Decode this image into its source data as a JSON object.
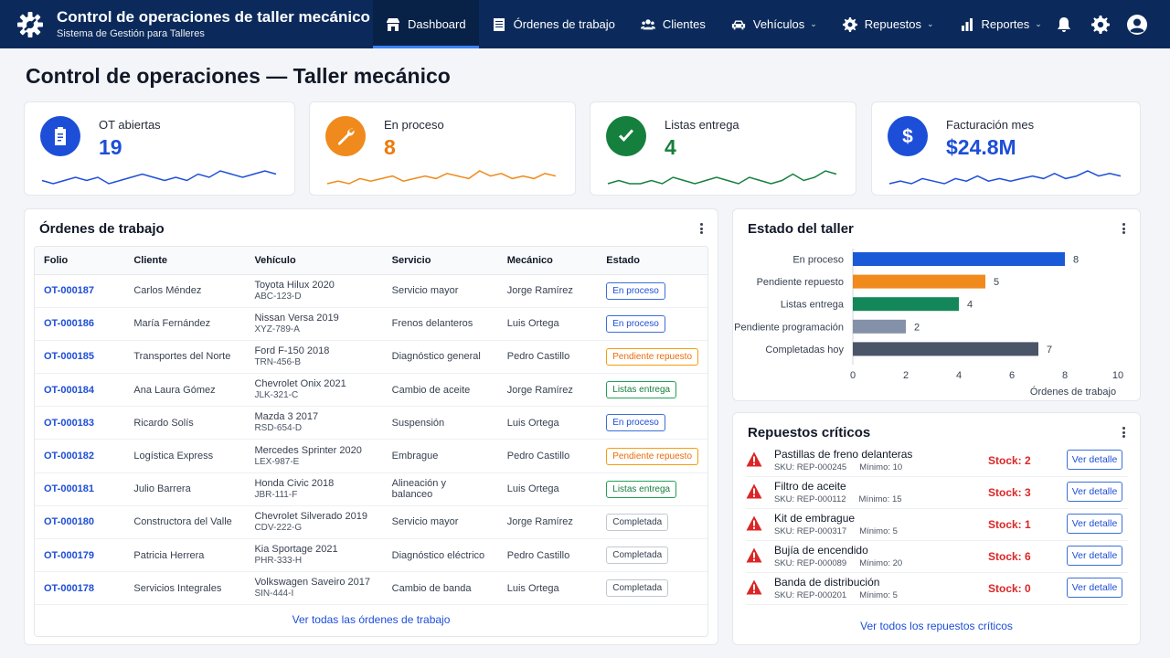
{
  "header": {
    "title": "Control de operaciones de taller mecánico",
    "subtitle": "Sistema de Gestión para Talleres",
    "nav": [
      {
        "label": "Dashboard",
        "icon": "store-icon",
        "active": true,
        "dropdown": false
      },
      {
        "label": "Órdenes de trabajo",
        "icon": "list-icon",
        "active": false,
        "dropdown": false
      },
      {
        "label": "Clientes",
        "icon": "users-icon",
        "active": false,
        "dropdown": false
      },
      {
        "label": "Vehículos",
        "icon": "car-icon",
        "active": false,
        "dropdown": true
      },
      {
        "label": "Repuestos",
        "icon": "gear-icon",
        "active": false,
        "dropdown": true
      },
      {
        "label": "Reportes",
        "icon": "bar-chart-icon",
        "active": false,
        "dropdown": true
      }
    ],
    "right_icons": [
      "bell-icon",
      "settings-icon",
      "user-avatar-icon"
    ]
  },
  "page_title": "Control de operaciones — Taller mecánico",
  "kpis": [
    {
      "label": "OT abiertas",
      "value": "19",
      "icon": "clipboard-icon",
      "color": "#1d4ed8",
      "value_color": "#1d4ed8",
      "trend": [
        6,
        5,
        6,
        7,
        6,
        7,
        5,
        6,
        7,
        8,
        7,
        6,
        7,
        6,
        8,
        7,
        9,
        8,
        7,
        8,
        9,
        8
      ]
    },
    {
      "label": "En proceso",
      "value": "8",
      "icon": "wrench-icon",
      "color": "#f08a1c",
      "value_color": "#ea7b0c",
      "trend": [
        4,
        5,
        4,
        6,
        5,
        6,
        7,
        5,
        6,
        7,
        6,
        8,
        7,
        6,
        9,
        7,
        8,
        6,
        7,
        6,
        8,
        7
      ]
    },
    {
      "label": "Listas entrega",
      "value": "4",
      "icon": "check-icon",
      "color": "#15803d",
      "value_color": "#15803d",
      "trend": [
        3,
        4,
        3,
        3,
        4,
        3,
        5,
        4,
        3,
        4,
        5,
        4,
        3,
        5,
        4,
        3,
        4,
        6,
        4,
        5,
        7,
        6
      ]
    },
    {
      "label": "Facturación mes",
      "value": "$24.8M",
      "icon": "dollar-icon",
      "color": "#1d4ed8",
      "value_color": "#1d4ed8",
      "trend": [
        5,
        6,
        5,
        7,
        6,
        5,
        7,
        6,
        8,
        6,
        7,
        6,
        7,
        8,
        7,
        9,
        7,
        8,
        10,
        8,
        9,
        8
      ]
    }
  ],
  "orders": {
    "title": "Órdenes de trabajo",
    "columns": [
      "Folio",
      "Cliente",
      "Vehículo",
      "Servicio",
      "Mecánico",
      "Estado"
    ],
    "rows": [
      {
        "folio": "OT-000187",
        "cliente": "Carlos Méndez",
        "vehiculo": "Toyota Hilux 2020",
        "placa": "ABC-123-D",
        "servicio": "Servicio mayor",
        "mecanico": "Jorge Ramírez",
        "estado": "En proceso",
        "tipo": "proc"
      },
      {
        "folio": "OT-000186",
        "cliente": "María Fernández",
        "vehiculo": "Nissan Versa 2019",
        "placa": "XYZ-789-A",
        "servicio": "Frenos delanteros",
        "mecanico": "Luis Ortega",
        "estado": "En proceso",
        "tipo": "proc"
      },
      {
        "folio": "OT-000185",
        "cliente": "Transportes del Norte",
        "vehiculo": "Ford F-150 2018",
        "placa": "TRN-456-B",
        "servicio": "Diagnóstico general",
        "mecanico": "Pedro Castillo",
        "estado": "Pendiente repuesto",
        "tipo": "pend"
      },
      {
        "folio": "OT-000184",
        "cliente": "Ana Laura Gómez",
        "vehiculo": "Chevrolet Onix 2021",
        "placa": "JLK-321-C",
        "servicio": "Cambio de aceite",
        "mecanico": "Jorge Ramírez",
        "estado": "Listas entrega",
        "tipo": "list"
      },
      {
        "folio": "OT-000183",
        "cliente": "Ricardo Solís",
        "vehiculo": "Mazda 3 2017",
        "placa": "RSD-654-D",
        "servicio": "Suspensión",
        "mecanico": "Luis Ortega",
        "estado": "En proceso",
        "tipo": "proc"
      },
      {
        "folio": "OT-000182",
        "cliente": "Logística Express",
        "vehiculo": "Mercedes Sprinter 2020",
        "placa": "LEX-987-E",
        "servicio": "Embrague",
        "mecanico": "Pedro Castillo",
        "estado": "Pendiente repuesto",
        "tipo": "pend"
      },
      {
        "folio": "OT-000181",
        "cliente": "Julio Barrera",
        "vehiculo": "Honda Civic 2018",
        "placa": "JBR-111-F",
        "servicio": "Alineación y balanceo",
        "mecanico": "Luis Ortega",
        "estado": "Listas entrega",
        "tipo": "list"
      },
      {
        "folio": "OT-000180",
        "cliente": "Constructora del Valle",
        "vehiculo": "Chevrolet Silverado 2019",
        "placa": "CDV-222-G",
        "servicio": "Servicio mayor",
        "mecanico": "Jorge Ramírez",
        "estado": "Completada",
        "tipo": "comp"
      },
      {
        "folio": "OT-000179",
        "cliente": "Patricia Herrera",
        "vehiculo": "Kia Sportage 2021",
        "placa": "PHR-333-H",
        "servicio": "Diagnóstico eléctrico",
        "mecanico": "Pedro Castillo",
        "estado": "Completada",
        "tipo": "comp"
      },
      {
        "folio": "OT-000178",
        "cliente": "Servicios Integrales",
        "vehiculo": "Volkswagen Saveiro 2017",
        "placa": "SIN-444-I",
        "servicio": "Cambio de banda",
        "mecanico": "Luis Ortega",
        "estado": "Completada",
        "tipo": "comp"
      }
    ],
    "footer_link": "Ver todas las órdenes de trabajo"
  },
  "status_card": {
    "title": "Estado del taller"
  },
  "chart_data": {
    "type": "bar",
    "orientation": "horizontal",
    "categories": [
      "En proceso",
      "Pendiente repuesto",
      "Listas entrega",
      "Pendiente programación",
      "Completadas hoy"
    ],
    "values": [
      8,
      5,
      4,
      2,
      7
    ],
    "colors": [
      "#1a5ad7",
      "#f08a1c",
      "#14875a",
      "#8491a8",
      "#4a5568"
    ],
    "xlabel": "Órdenes de trabajo",
    "ylabel": "",
    "xlim": [
      0,
      10
    ],
    "xticks": [
      0,
      2,
      4,
      6,
      8,
      10
    ],
    "data_labels": true,
    "grid": false
  },
  "parts": {
    "title": "Repuestos críticos",
    "items": [
      {
        "name": "Pastillas de freno delanteras",
        "sku": "SKU: REP-000245",
        "min": "Mínimo: 10",
        "stock": "Stock: 2",
        "button": "Ver detalle"
      },
      {
        "name": "Filtro de aceite",
        "sku": "SKU: REP-000112",
        "min": "Mínimo: 15",
        "stock": "Stock: 3",
        "button": "Ver detalle"
      },
      {
        "name": "Kit de embrague",
        "sku": "SKU: REP-000317",
        "min": "Mínimo: 5",
        "stock": "Stock: 1",
        "button": "Ver detalle"
      },
      {
        "name": "Bujía de encendido",
        "sku": "SKU: REP-000089",
        "min": "Mínimo: 20",
        "stock": "Stock: 6",
        "button": "Ver detalle"
      },
      {
        "name": "Banda de distribución",
        "sku": "SKU: REP-000201",
        "min": "Mínimo: 5",
        "stock": "Stock: 0",
        "button": "Ver detalle"
      }
    ],
    "footer_link": "Ver todos los repuestos críticos"
  }
}
